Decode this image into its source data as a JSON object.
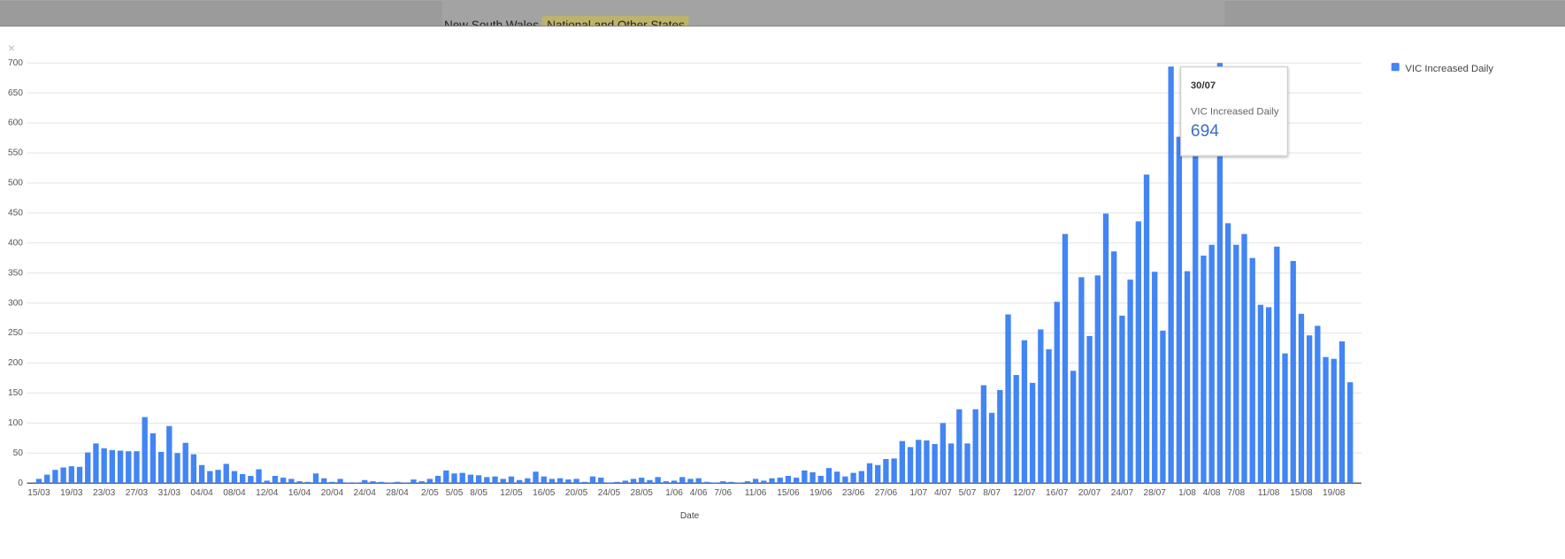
{
  "tabs": [
    "New South Wales",
    "National and Other States"
  ],
  "close_icon": "×",
  "chart_data": {
    "type": "bar",
    "xlabel": "Date",
    "categories": [
      "15/03",
      null,
      null,
      null,
      "19/03",
      null,
      null,
      null,
      "23/03",
      null,
      null,
      null,
      "27/03",
      null,
      null,
      null,
      "31/03",
      null,
      null,
      null,
      "04/04",
      null,
      null,
      null,
      "08/04",
      null,
      null,
      null,
      "12/04",
      null,
      null,
      null,
      "16/04",
      null,
      null,
      null,
      "20/04",
      null,
      null,
      null,
      "24/04",
      null,
      null,
      null,
      "28/04",
      null,
      null,
      null,
      "2/05",
      null,
      null,
      "5/05",
      null,
      null,
      "8/05",
      null,
      null,
      null,
      "12/05",
      null,
      null,
      null,
      "16/05",
      null,
      null,
      null,
      "20/05",
      null,
      null,
      null,
      "24/05",
      null,
      null,
      null,
      "28/05",
      null,
      null,
      null,
      "1/06",
      null,
      null,
      "4/06",
      null,
      null,
      "7/06",
      null,
      null,
      null,
      "11/06",
      null,
      null,
      null,
      "15/06",
      null,
      null,
      null,
      "19/06",
      null,
      null,
      null,
      "23/06",
      null,
      null,
      null,
      "27/06",
      null,
      null,
      null,
      "1/07",
      null,
      null,
      "4/07",
      null,
      null,
      "5/07",
      null,
      null,
      "8/07",
      null,
      null,
      null,
      "12/07",
      null,
      null,
      null,
      "16/07",
      null,
      null,
      null,
      "20/07",
      null,
      null,
      null,
      "24/07",
      null,
      null,
      null,
      "28/07",
      null,
      null,
      null,
      "1/08",
      null,
      null,
      "4/08",
      null,
      null,
      "7/08",
      null,
      null,
      null,
      "11/08",
      null,
      null,
      null,
      "15/08",
      null,
      null,
      null,
      "19/08",
      null,
      null
    ],
    "series": [
      {
        "name": "VIC Increased Daily",
        "color": "#4285f4",
        "values": [
          7,
          14,
          22,
          26,
          28,
          27,
          51,
          66,
          58,
          55,
          54,
          53,
          53,
          110,
          83,
          52,
          95,
          50,
          67,
          48,
          30,
          20,
          22,
          32,
          20,
          15,
          12,
          23,
          4,
          12,
          9,
          7,
          3,
          2,
          16,
          8,
          2,
          7,
          1,
          1,
          5,
          3,
          2,
          1,
          2,
          1,
          6,
          3,
          7,
          12,
          21,
          16,
          17,
          14,
          13,
          10,
          11,
          7,
          11,
          5,
          8,
          19,
          11,
          7,
          8,
          6,
          7,
          2,
          11,
          9,
          1,
          2,
          4,
          7,
          9,
          5,
          10,
          3,
          4,
          10,
          7,
          8,
          2,
          1,
          3,
          2,
          1,
          3,
          7,
          4,
          8,
          9,
          12,
          9,
          21,
          18,
          12,
          25,
          19,
          11,
          17,
          20,
          33,
          30,
          40,
          41,
          70,
          60,
          72,
          71,
          65,
          100,
          66,
          123,
          66,
          123,
          163,
          117,
          155,
          281,
          180,
          238,
          167,
          256,
          223,
          302,
          415,
          187,
          343,
          245,
          346,
          449,
          386,
          279,
          339,
          436,
          514,
          352,
          254,
          694,
          577,
          353,
          560,
          379,
          397,
          700,
          433,
          397,
          415,
          375,
          297,
          293,
          394,
          216,
          370,
          282,
          246,
          262,
          210,
          207,
          236,
          168
        ]
      }
    ],
    "ylim": [
      0,
      700
    ],
    "yticks": [
      0,
      50,
      100,
      150,
      200,
      250,
      300,
      350,
      400,
      450,
      500,
      550,
      600,
      650,
      700
    ],
    "grid": true,
    "legend": "top-right",
    "tooltip_date": "30/07",
    "tooltip_index": 139
  }
}
